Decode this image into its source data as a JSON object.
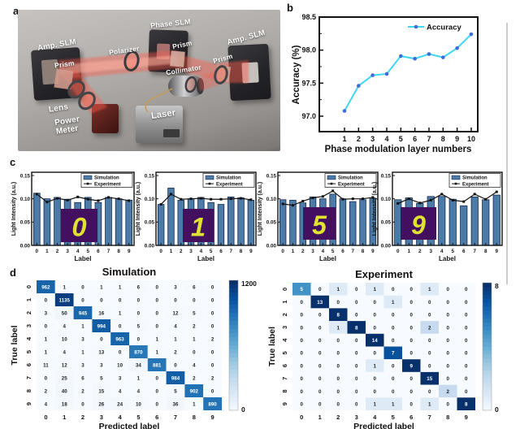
{
  "panels": {
    "a": "a",
    "b": "b",
    "c": "c",
    "d": "d"
  },
  "panel_a": {
    "labels": {
      "amp_slm_left": "Amp. SLM",
      "prism_left": "Prism",
      "lens": "Lens",
      "power_meter": "Power Meter",
      "polarizer": "Polarizer",
      "phase_slm": "Phase SLM",
      "prism_center": "Prism",
      "collimator": "Collimator",
      "laser": "Laser",
      "prism_right": "Prism",
      "amp_slm_right": "Amp. SLM"
    }
  },
  "chart_data": [
    {
      "id": "accuracy_vs_layers",
      "type": "line",
      "legend": [
        "Accuracy"
      ],
      "x": [
        1,
        2,
        3,
        4,
        5,
        6,
        7,
        8,
        9,
        10
      ],
      "values": [
        97.08,
        97.46,
        97.62,
        97.64,
        97.91,
        97.87,
        97.94,
        97.89,
        98.03,
        98.24
      ],
      "xlabel": "Phase modulation layer numbers",
      "ylabel": "Accuracy (%)",
      "ylim": [
        96.77,
        98.5
      ],
      "yticks": [
        97.0,
        97.5,
        98.0,
        98.5
      ],
      "grid": false,
      "legend_position": "top-right",
      "line_color": "#3fd7f3",
      "marker_color": "#3e6bd8"
    },
    {
      "id": "intensity_digit_0",
      "type": "bar",
      "inset_digit": "0",
      "categories": [
        "0",
        "1",
        "2",
        "3",
        "4",
        "5",
        "6",
        "7",
        "8",
        "9"
      ],
      "series": [
        {
          "name": "Simulation",
          "values": [
            0.112,
            0.1,
            0.103,
            0.099,
            0.092,
            0.103,
            0.092,
            0.103,
            0.1,
            0.097
          ]
        },
        {
          "name": "Experiment",
          "values": [
            0.11,
            0.093,
            0.101,
            0.097,
            0.104,
            0.099,
            0.096,
            0.103,
            0.1,
            0.096
          ]
        }
      ],
      "xlabel": "Label",
      "ylabel": "Light Intensity (a.u.)",
      "ylim": [
        0,
        0.157
      ],
      "yticks": [
        0,
        0.05,
        0.1,
        0.15
      ],
      "bar_color": "#4d7ba8",
      "line_color": "#111111",
      "inset_bg": "#42105f",
      "inset_fg": "#e0e22f"
    },
    {
      "id": "intensity_digit_1",
      "type": "bar",
      "inset_digit": "1",
      "categories": [
        "0",
        "1",
        "2",
        "3",
        "4",
        "5",
        "6",
        "7",
        "8",
        "9"
      ],
      "series": [
        {
          "name": "Simulation",
          "values": [
            0.088,
            0.123,
            0.097,
            0.1,
            0.103,
            0.092,
            0.088,
            0.104,
            0.102,
            0.097
          ]
        },
        {
          "name": "Experiment",
          "values": [
            0.088,
            0.11,
            0.099,
            0.1,
            0.101,
            0.099,
            0.099,
            0.1,
            0.101,
            0.098
          ]
        }
      ],
      "xlabel": "Label",
      "ylabel": "Light Intensity (a.u.)",
      "ylim": [
        0,
        0.157
      ],
      "yticks": [
        0,
        0.05,
        0.1,
        0.15
      ],
      "bar_color": "#4d7ba8",
      "line_color": "#111111",
      "inset_bg": "#42105f",
      "inset_fg": "#e0e22f"
    },
    {
      "id": "intensity_digit_5",
      "type": "bar",
      "inset_digit": "5",
      "categories": [
        "0",
        "1",
        "2",
        "3",
        "4",
        "5",
        "6",
        "7",
        "8",
        "9"
      ],
      "series": [
        {
          "name": "Simulation",
          "values": [
            0.098,
            0.097,
            0.091,
            0.104,
            0.1,
            0.11,
            0.1,
            0.094,
            0.098,
            0.1
          ]
        },
        {
          "name": "Experiment",
          "values": [
            0.089,
            0.086,
            0.095,
            0.102,
            0.105,
            0.117,
            0.099,
            0.1,
            0.1,
            0.103
          ]
        }
      ],
      "xlabel": "Label",
      "ylabel": "Light Intensity (a.u.)",
      "ylim": [
        0,
        0.157
      ],
      "yticks": [
        0,
        0.05,
        0.1,
        0.15
      ],
      "bar_color": "#4d7ba8",
      "line_color": "#111111",
      "inset_bg": "#42105f",
      "inset_fg": "#e0e22f"
    },
    {
      "id": "intensity_digit_9",
      "type": "bar",
      "inset_digit": "9",
      "categories": [
        "0",
        "1",
        "2",
        "3",
        "4",
        "5",
        "6",
        "7",
        "8",
        "9"
      ],
      "series": [
        {
          "name": "Simulation",
          "values": [
            0.098,
            0.102,
            0.09,
            0.105,
            0.105,
            0.099,
            0.085,
            0.104,
            0.098,
            0.108
          ]
        },
        {
          "name": "Experiment",
          "values": [
            0.09,
            0.1,
            0.091,
            0.097,
            0.11,
            0.097,
            0.094,
            0.11,
            0.099,
            0.115
          ]
        }
      ],
      "xlabel": "Label",
      "ylabel": "Light Intensity (a.u.)",
      "ylim": [
        0,
        0.157
      ],
      "yticks": [
        0,
        0.05,
        0.1,
        0.15
      ],
      "bar_color": "#4d7ba8",
      "line_color": "#111111",
      "inset_bg": "#42105f",
      "inset_fg": "#e0e22f"
    },
    {
      "id": "confusion_simulation",
      "type": "heatmap",
      "title": "Simulation",
      "xlabel": "Predicted label",
      "ylabel": "True label",
      "row_labels": [
        "0",
        "1",
        "2",
        "3",
        "4",
        "5",
        "6",
        "7",
        "8",
        "9"
      ],
      "col_labels": [
        "0",
        "1",
        "2",
        "3",
        "4",
        "5",
        "6",
        "7",
        "8",
        "9"
      ],
      "vmax": 1200,
      "colorbar_ticks": [
        "1200",
        "0"
      ],
      "colormap": "Blues",
      "matrix": [
        [
          962,
          1,
          0,
          1,
          1,
          6,
          0,
          3,
          6,
          0
        ],
        [
          0,
          1135,
          0,
          0,
          0,
          0,
          0,
          0,
          0,
          0
        ],
        [
          3,
          50,
          945,
          16,
          1,
          0,
          0,
          12,
          5,
          0
        ],
        [
          0,
          4,
          1,
          994,
          0,
          5,
          0,
          4,
          2,
          0
        ],
        [
          1,
          10,
          3,
          0,
          963,
          0,
          1,
          1,
          1,
          2
        ],
        [
          1,
          4,
          1,
          13,
          0,
          870,
          1,
          2,
          0,
          0
        ],
        [
          11,
          12,
          3,
          3,
          10,
          34,
          881,
          0,
          4,
          0
        ],
        [
          0,
          25,
          6,
          5,
          3,
          1,
          0,
          984,
          2,
          2
        ],
        [
          2,
          40,
          2,
          15,
          4,
          4,
          0,
          5,
          902,
          0
        ],
        [
          4,
          18,
          0,
          26,
          24,
          10,
          0,
          36,
          1,
          890
        ]
      ]
    },
    {
      "id": "confusion_experiment",
      "type": "heatmap",
      "title": "Experiment",
      "xlabel": "Predicted label",
      "ylabel": "True label",
      "row_labels": [
        "0",
        "1",
        "2",
        "3",
        "4",
        "5",
        "6",
        "7",
        "8",
        "9"
      ],
      "col_labels": [
        "0",
        "1",
        "2",
        "3",
        "4",
        "5",
        "6",
        "7",
        "8",
        "9"
      ],
      "vmax": 8,
      "colorbar_ticks": [
        "8",
        "0"
      ],
      "colormap": "Blues",
      "matrix": [
        [
          5,
          0,
          1,
          0,
          1,
          0,
          0,
          1,
          0,
          0
        ],
        [
          0,
          13,
          0,
          0,
          0,
          1,
          0,
          0,
          0,
          0
        ],
        [
          0,
          0,
          8,
          0,
          0,
          0,
          0,
          0,
          0,
          0
        ],
        [
          0,
          0,
          1,
          8,
          0,
          0,
          0,
          2,
          0,
          0
        ],
        [
          0,
          0,
          0,
          0,
          14,
          0,
          0,
          0,
          0,
          0
        ],
        [
          0,
          0,
          0,
          0,
          0,
          7,
          0,
          0,
          0,
          0
        ],
        [
          0,
          0,
          0,
          0,
          1,
          0,
          9,
          0,
          0,
          0
        ],
        [
          0,
          0,
          0,
          0,
          0,
          0,
          0,
          15,
          0,
          0
        ],
        [
          0,
          0,
          0,
          0,
          0,
          0,
          0,
          0,
          2,
          0
        ],
        [
          0,
          0,
          0,
          0,
          1,
          1,
          0,
          1,
          0,
          8
        ]
      ]
    }
  ]
}
